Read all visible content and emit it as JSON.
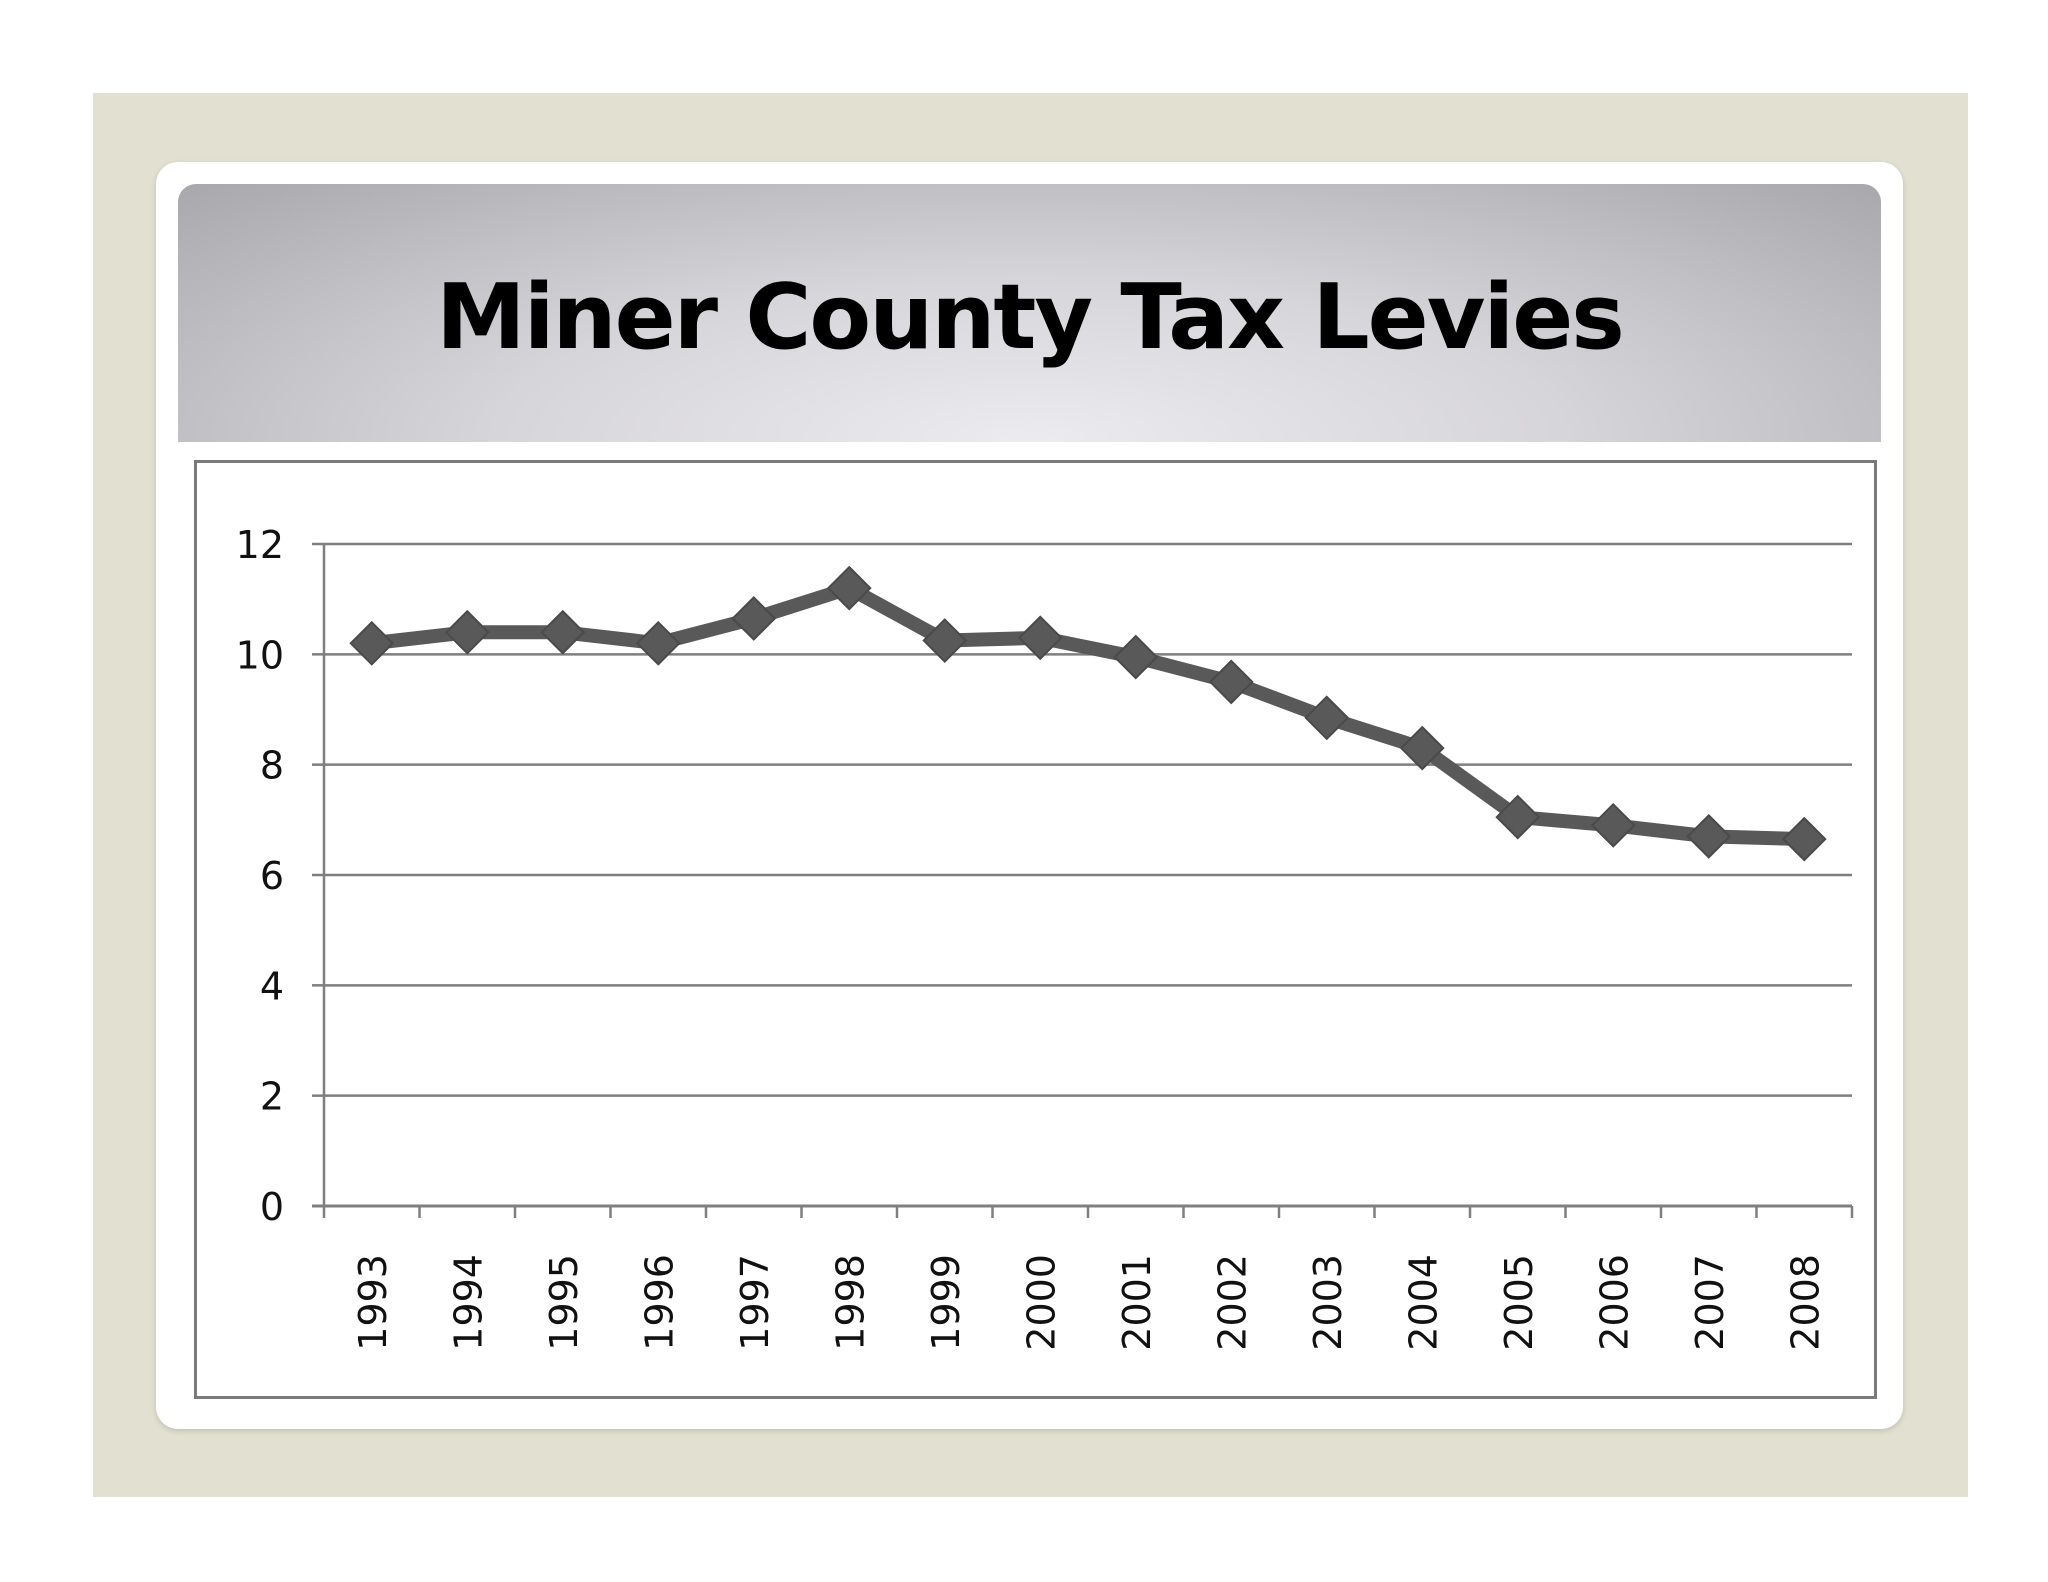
{
  "slide": {
    "title": "Miner County Tax Levies"
  },
  "colors": {
    "frame": "#e2e0d1",
    "line": "#595959",
    "gridline": "#7f7f7f"
  },
  "chart_data": {
    "type": "line",
    "title": "Miner County Tax Levies",
    "xlabel": "",
    "ylabel": "",
    "categories": [
      "1993",
      "1994",
      "1995",
      "1996",
      "1997",
      "1998",
      "1999",
      "2000",
      "2001",
      "2002",
      "2003",
      "2004",
      "2005",
      "2006",
      "2007",
      "2008"
    ],
    "series": [
      {
        "values": [
          10.2,
          10.4,
          10.4,
          10.2,
          10.65,
          11.2,
          10.25,
          10.3,
          9.95,
          9.5,
          8.85,
          8.3,
          7.05,
          6.9,
          6.7,
          6.65
        ]
      }
    ],
    "ylim": [
      0,
      12
    ],
    "yticks": [
      "0",
      "2",
      "4",
      "6",
      "8",
      "10",
      "12"
    ],
    "grid": true,
    "marker": "diamond",
    "legend": "none",
    "x_tick_rotation": "vertical"
  }
}
